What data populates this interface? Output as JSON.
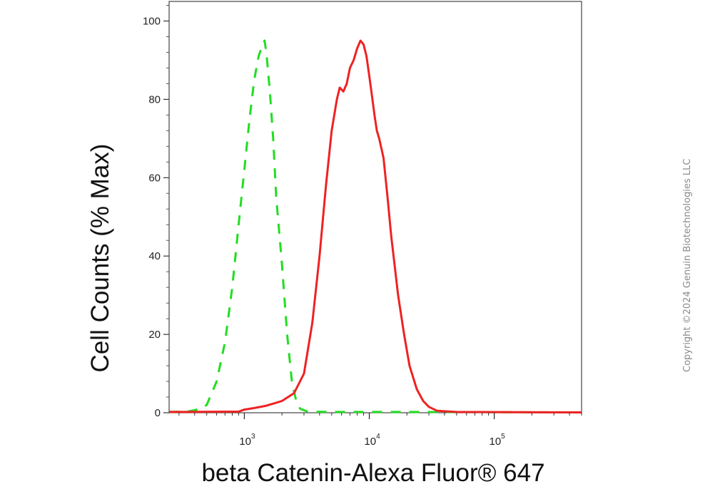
{
  "copyright": "Copyright ©2024 Genuin Biotechnologies LLC",
  "chart_data": {
    "type": "line",
    "xlabel": "beta Catenin-Alexa Fluor® 647",
    "ylabel": "Cell Counts (% Max)",
    "xscale": "log",
    "xlim": [
      250,
      500000
    ],
    "ylim": [
      0,
      105
    ],
    "y_ticks": [
      "0",
      "20",
      "40",
      "60",
      "80",
      "100"
    ],
    "x_ticks": [
      {
        "base": "10",
        "exp": "3",
        "value": 1000
      },
      {
        "base": "10",
        "exp": "4",
        "value": 10000
      },
      {
        "base": "10",
        "exp": "5",
        "value": 100000
      }
    ],
    "series": [
      {
        "style": "dashed",
        "color": "#22dd22",
        "points": [
          [
            250,
            0.2
          ],
          [
            350,
            0.3
          ],
          [
            450,
            1
          ],
          [
            500,
            2
          ],
          [
            600,
            8
          ],
          [
            700,
            18
          ],
          [
            800,
            32
          ],
          [
            900,
            48
          ],
          [
            1000,
            62
          ],
          [
            1100,
            75
          ],
          [
            1200,
            85
          ],
          [
            1300,
            91
          ],
          [
            1400,
            94
          ],
          [
            1450,
            95
          ],
          [
            1500,
            92
          ],
          [
            1600,
            82
          ],
          [
            1700,
            70
          ],
          [
            1800,
            55
          ],
          [
            2000,
            38
          ],
          [
            2200,
            20
          ],
          [
            2400,
            8
          ],
          [
            2600,
            3
          ],
          [
            2800,
            1
          ],
          [
            3200,
            0.3
          ],
          [
            5000,
            0.2
          ],
          [
            20000,
            0.2
          ],
          [
            500000,
            0.1
          ]
        ]
      },
      {
        "style": "solid",
        "color": "#ee2222",
        "points": [
          [
            250,
            0.2
          ],
          [
            900,
            0.3
          ],
          [
            1000,
            0.8
          ],
          [
            1200,
            1.2
          ],
          [
            1500,
            1.8
          ],
          [
            2000,
            3
          ],
          [
            2500,
            5
          ],
          [
            3000,
            10
          ],
          [
            3500,
            23
          ],
          [
            4000,
            40
          ],
          [
            4500,
            58
          ],
          [
            5000,
            72
          ],
          [
            5500,
            80
          ],
          [
            5800,
            83
          ],
          [
            6200,
            82
          ],
          [
            6600,
            84
          ],
          [
            7000,
            88
          ],
          [
            7500,
            90
          ],
          [
            8000,
            93
          ],
          [
            8500,
            95
          ],
          [
            9000,
            94
          ],
          [
            9500,
            91
          ],
          [
            10000,
            86
          ],
          [
            10500,
            81
          ],
          [
            11000,
            76
          ],
          [
            11500,
            72
          ],
          [
            12000,
            70
          ],
          [
            13000,
            65
          ],
          [
            14000,
            55
          ],
          [
            15000,
            45
          ],
          [
            17000,
            30
          ],
          [
            19000,
            20
          ],
          [
            21000,
            12
          ],
          [
            24000,
            6
          ],
          [
            27000,
            3
          ],
          [
            30000,
            1.5
          ],
          [
            35000,
            0.5
          ],
          [
            50000,
            0.2
          ],
          [
            500000,
            0.1
          ]
        ]
      }
    ]
  }
}
